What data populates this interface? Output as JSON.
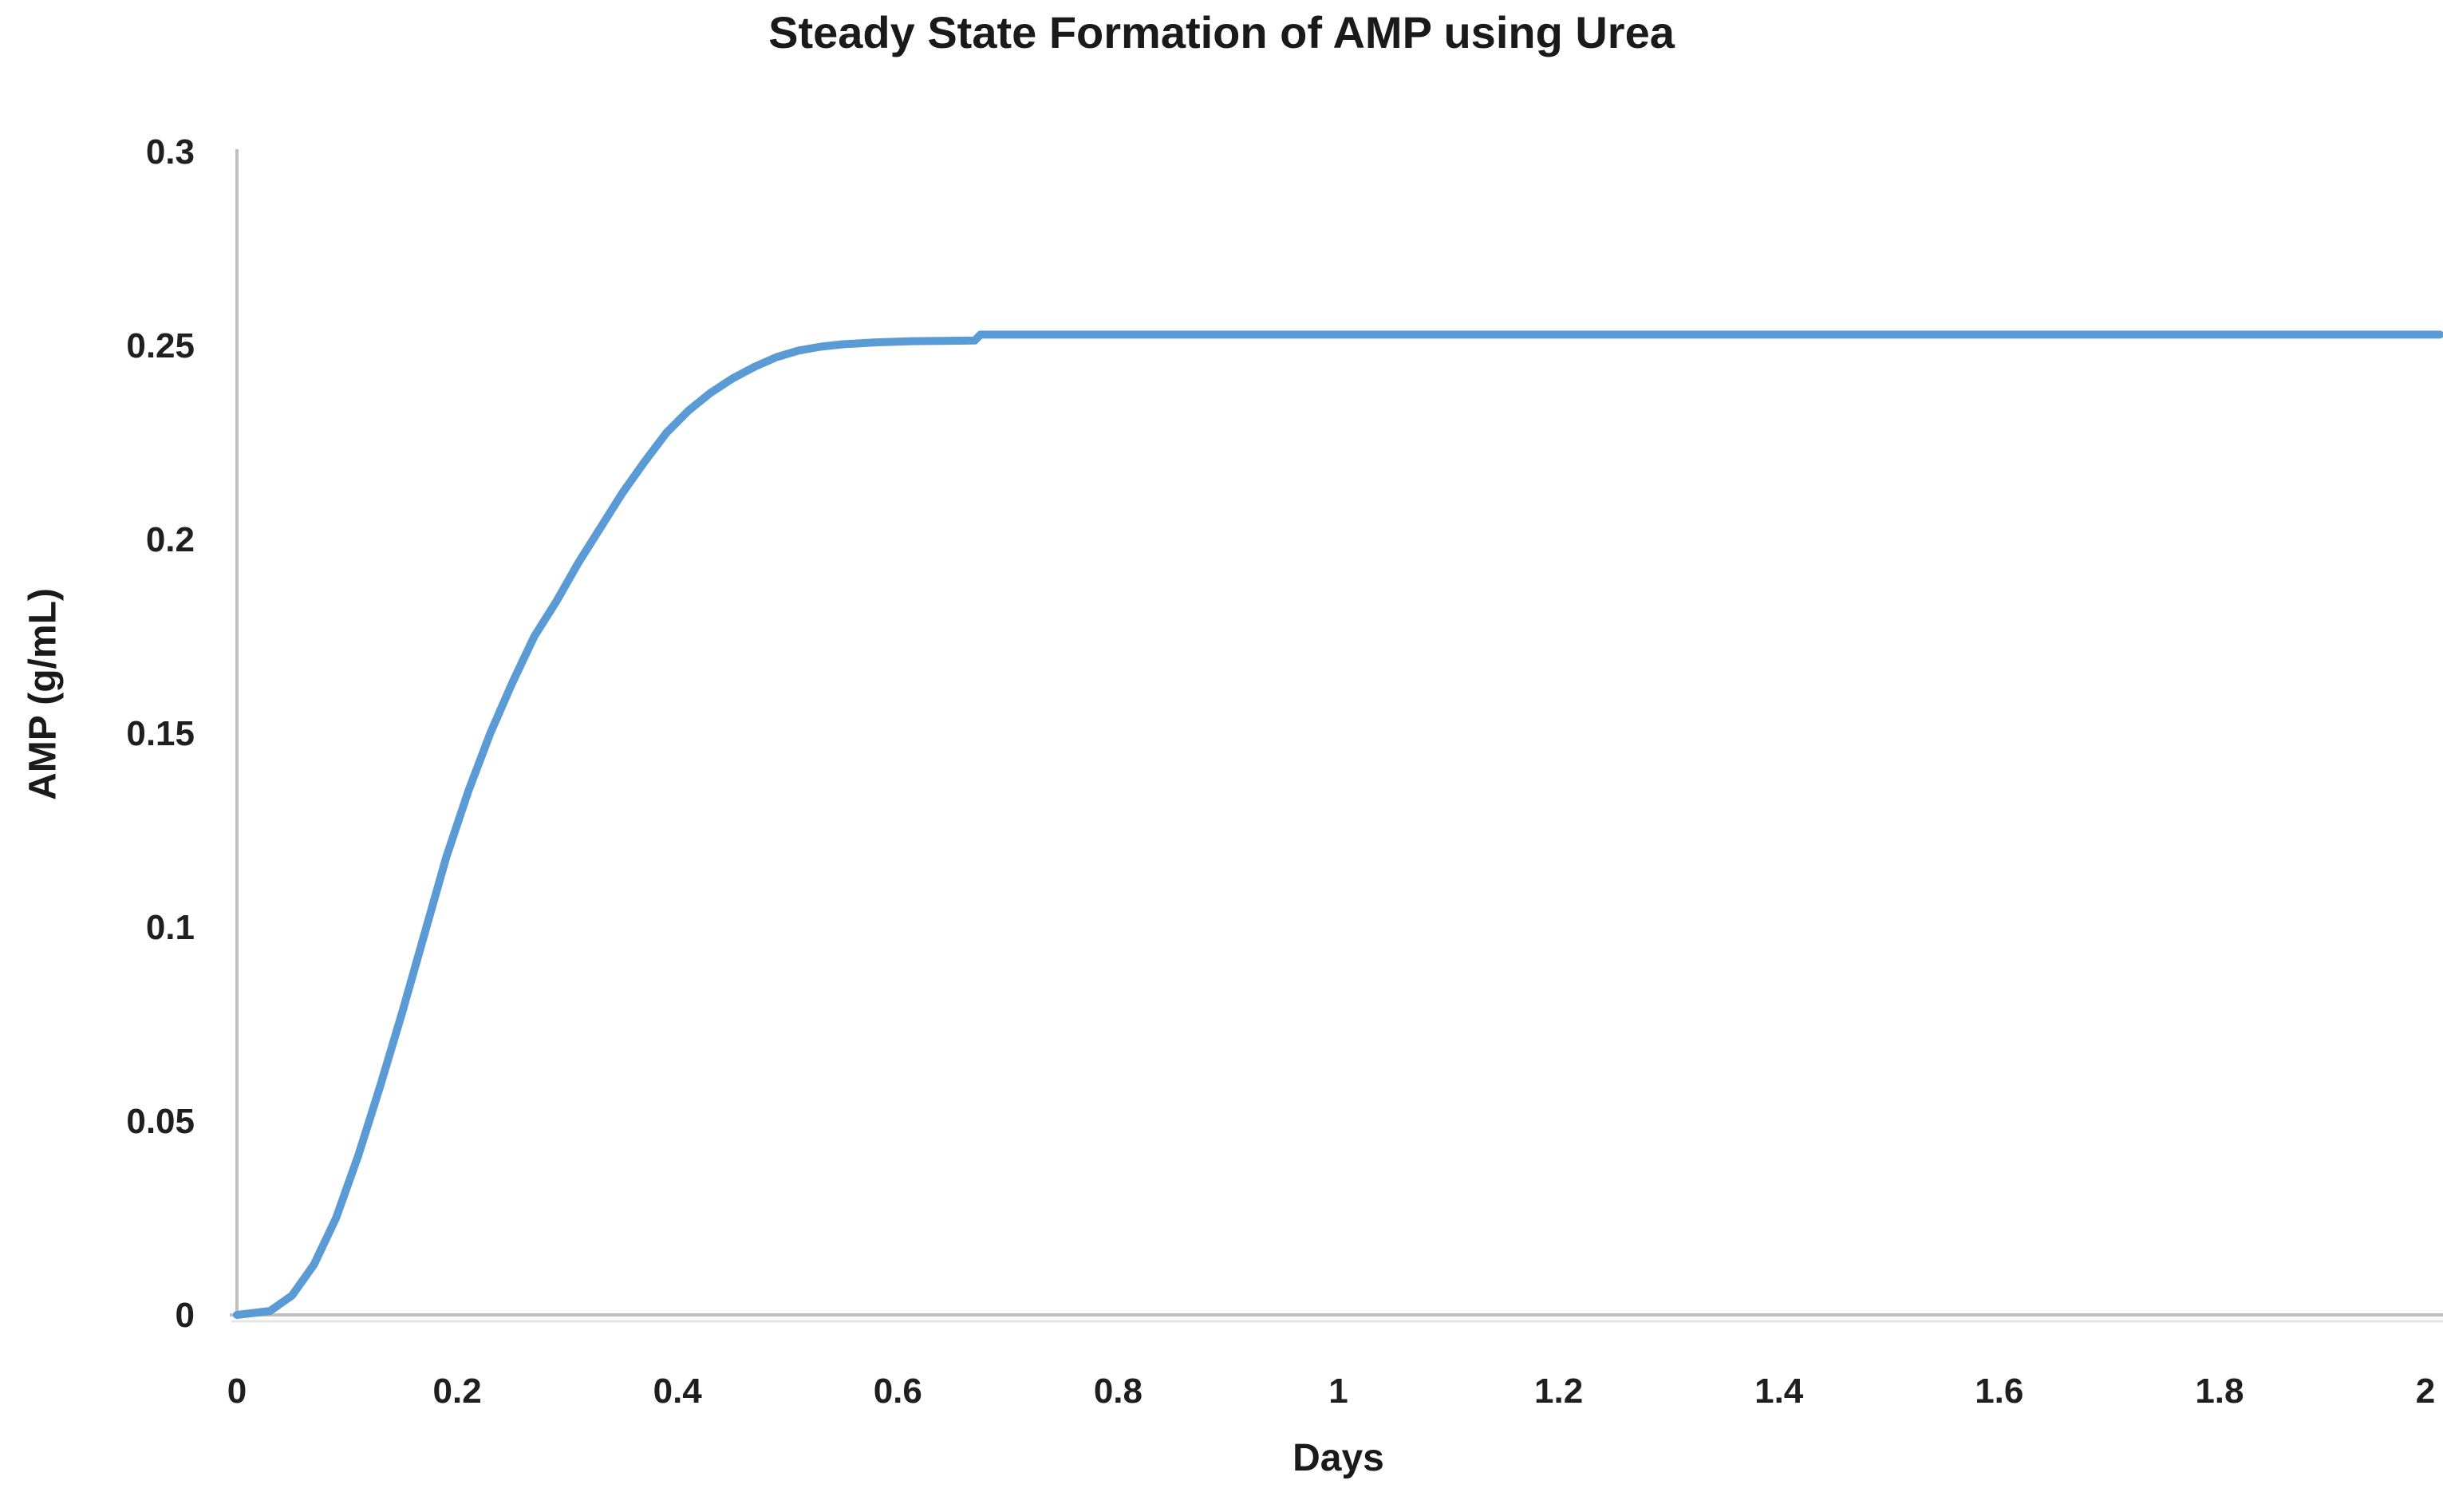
{
  "title": "Steady State Formation of AMP using Urea",
  "axes": {
    "x": {
      "label": "Days",
      "ticks": [
        {
          "value": 0,
          "label": "0"
        },
        {
          "value": 0.2,
          "label": "0.2"
        },
        {
          "value": 0.4,
          "label": "0.4"
        },
        {
          "value": 0.6,
          "label": "0.6"
        },
        {
          "value": 0.8,
          "label": "0.8"
        },
        {
          "value": 1,
          "label": "1"
        },
        {
          "value": 1.2,
          "label": "1.2"
        },
        {
          "value": 1.4,
          "label": "1.4"
        },
        {
          "value": 1.6,
          "label": "1.6"
        },
        {
          "value": 1.8,
          "label": "1.8"
        },
        {
          "value": 2,
          "label": "2"
        }
      ]
    },
    "y": {
      "label": "AMP (g/mL)",
      "ticks": [
        {
          "value": 0,
          "label": "0"
        },
        {
          "value": 0.05,
          "label": "0.05"
        },
        {
          "value": 0.1,
          "label": "0.1"
        },
        {
          "value": 0.15,
          "label": "0.15"
        },
        {
          "value": 0.2,
          "label": "0.2"
        },
        {
          "value": 0.25,
          "label": "0.25"
        },
        {
          "value": 0.3,
          "label": "0.3"
        }
      ]
    }
  },
  "colors": {
    "series_line": "#5B9BD5",
    "axis_line": "#BFBFBF",
    "axis_shadow": "#E5E5E5",
    "text": "#1f1f1f"
  },
  "chart_data": {
    "type": "line",
    "title": "Steady State Formation of AMP using Urea",
    "xlabel": "Days",
    "ylabel": "AMP (g/mL)",
    "xlim": [
      0,
      2
    ],
    "ylim": [
      0,
      0.3
    ],
    "grid": false,
    "legend_position": "none",
    "steady_state_value": 0.253,
    "series": [
      {
        "name": "AMP",
        "color": "#5B9BD5",
        "points": [
          [
            0,
            0
          ],
          [
            0.03,
            0.001
          ],
          [
            0.05,
            0.005
          ],
          [
            0.07,
            0.013
          ],
          [
            0.09,
            0.025
          ],
          [
            0.11,
            0.041
          ],
          [
            0.13,
            0.059
          ],
          [
            0.15,
            0.078
          ],
          [
            0.17,
            0.098
          ],
          [
            0.19,
            0.118
          ],
          [
            0.21,
            0.135
          ],
          [
            0.23,
            0.15
          ],
          [
            0.25,
            0.163
          ],
          [
            0.27,
            0.175
          ],
          [
            0.29,
            0.184
          ],
          [
            0.31,
            0.194
          ],
          [
            0.33,
            0.203
          ],
          [
            0.35,
            0.212
          ],
          [
            0.37,
            0.22
          ],
          [
            0.39,
            0.2275
          ],
          [
            0.41,
            0.2332
          ],
          [
            0.43,
            0.2378
          ],
          [
            0.45,
            0.2415
          ],
          [
            0.47,
            0.2445
          ],
          [
            0.49,
            0.247
          ],
          [
            0.51,
            0.2487
          ],
          [
            0.53,
            0.2497
          ],
          [
            0.55,
            0.2503
          ],
          [
            0.58,
            0.2508
          ],
          [
            0.61,
            0.2511
          ],
          [
            0.64,
            0.2512
          ],
          [
            0.67,
            0.2513
          ],
          [
            0.675,
            0.2528
          ],
          [
            0.7,
            0.2528
          ],
          [
            0.8,
            0.2528
          ],
          [
            0.9,
            0.2528
          ],
          [
            1,
            0.2528
          ],
          [
            1.1,
            0.2528
          ],
          [
            1.2,
            0.2528
          ],
          [
            1.3,
            0.2528
          ],
          [
            1.4,
            0.2528
          ],
          [
            1.5,
            0.2528
          ],
          [
            1.6,
            0.2528
          ],
          [
            1.7,
            0.2528
          ],
          [
            1.8,
            0.2528
          ],
          [
            1.9,
            0.2528
          ],
          [
            2,
            0.2528
          ]
        ]
      }
    ]
  }
}
